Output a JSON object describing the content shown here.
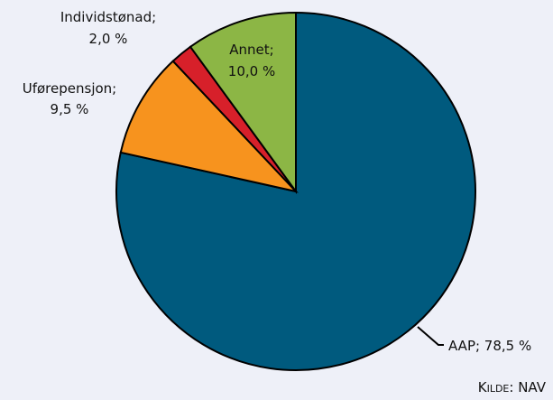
{
  "chart_data": {
    "type": "pie",
    "slices": [
      {
        "label": "AAP",
        "value": 78.5,
        "color": "#005a7e",
        "text_line1": "AAP; 78,5 %"
      },
      {
        "label": "Uførepensjon",
        "value": 9.5,
        "color": "#f7931e",
        "text_line1": "Uførepensjon;",
        "text_line2": "9,5 %"
      },
      {
        "label": "Individstønad",
        "value": 2.0,
        "color": "#d7202a",
        "text_line1": "Individstønad;",
        "text_line2": "2,0 %"
      },
      {
        "label": "Annet",
        "value": 10.0,
        "color": "#8cb645",
        "text_line1": "Annet;",
        "text_line2": "10,0 %"
      }
    ],
    "start": "top",
    "direction": "clockwise"
  },
  "source": {
    "prefix_big": "K",
    "prefix_small": "ILDE",
    "rest": ": NAV"
  }
}
